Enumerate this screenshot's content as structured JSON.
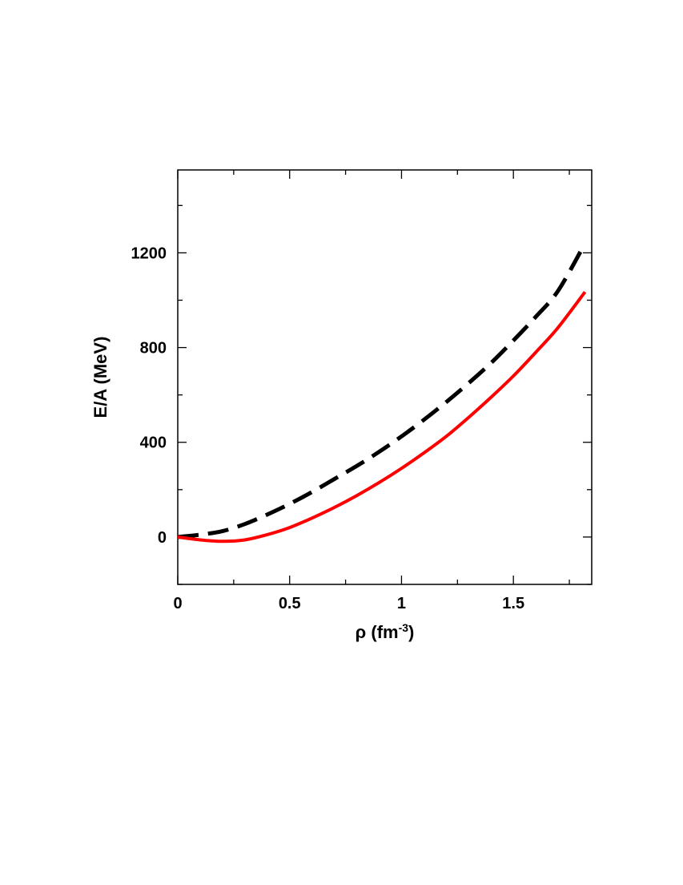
{
  "chart_data": {
    "type": "line",
    "title": "",
    "xlabel": {
      "base": "ρ (fm",
      "sup": "-3",
      "suffix": ")"
    },
    "ylabel": "E/A (MeV)",
    "xlim": [
      0,
      1.85
    ],
    "ylim": [
      -200,
      1550
    ],
    "xticks": [
      0,
      0.5,
      1,
      1.5
    ],
    "xtick_labels": [
      "0",
      "0.5",
      "1",
      "1.5"
    ],
    "xminor": [
      0.25,
      0.75,
      1.25,
      1.75
    ],
    "yticks": [
      0,
      400,
      800,
      1200
    ],
    "ytick_labels": [
      "0",
      "400",
      "800",
      "1200"
    ],
    "yminor": [
      -200,
      200,
      600,
      1000,
      1400
    ],
    "grid": false,
    "legend": "none",
    "series": [
      {
        "color": "#000000",
        "style": "dashed",
        "x": [
          0,
          0.1,
          0.2,
          0.3,
          0.4,
          0.5,
          0.6,
          0.7,
          0.8,
          0.9,
          1.0,
          1.1,
          1.2,
          1.3,
          1.4,
          1.5,
          1.6,
          1.7,
          1.82
        ],
        "y": [
          0,
          10,
          25,
          55,
          95,
          140,
          190,
          245,
          300,
          360,
          425,
          495,
          570,
          650,
          735,
          830,
          930,
          1040,
          1240
        ]
      },
      {
        "color": "#ff0000",
        "style": "solid",
        "x": [
          0,
          0.1,
          0.2,
          0.3,
          0.4,
          0.5,
          0.6,
          0.7,
          0.8,
          0.9,
          1.0,
          1.1,
          1.2,
          1.3,
          1.4,
          1.5,
          1.6,
          1.7,
          1.82
        ],
        "y": [
          0,
          -12,
          -18,
          -12,
          10,
          40,
          80,
          125,
          175,
          230,
          290,
          355,
          425,
          505,
          590,
          680,
          780,
          885,
          1035
        ]
      }
    ]
  }
}
